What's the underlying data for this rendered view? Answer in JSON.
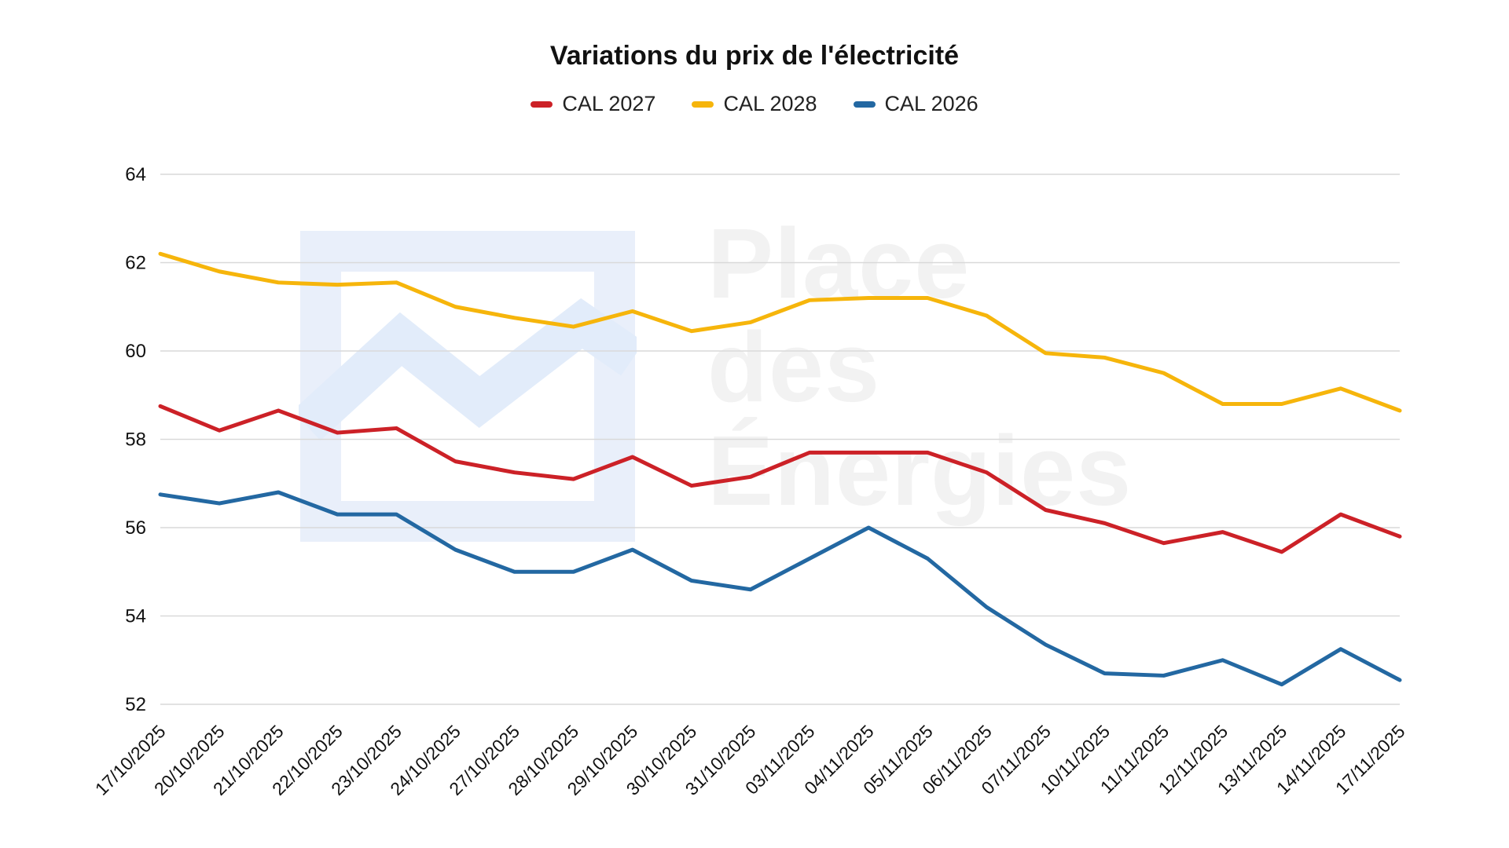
{
  "title": "Variations du prix de l'électricité",
  "watermark": {
    "lines": [
      "Place",
      "des",
      "Énergies"
    ],
    "text_color": "#f2f2f2",
    "logo_color": "#e9effa",
    "logo_zigzag_color": "#e2ecfa"
  },
  "colors": {
    "grid": "#d9d9d9",
    "tick_label": "#111111",
    "background": "#ffffff"
  },
  "chart_data": {
    "type": "line",
    "title": "Variations du prix de l'électricité",
    "xlabel": "",
    "ylabel": "",
    "ylim": [
      52,
      64
    ],
    "yticks": [
      52,
      54,
      56,
      58,
      60,
      62,
      64
    ],
    "grid": true,
    "legend_position": "top",
    "categories": [
      "17/10/2025",
      "20/10/2025",
      "21/10/2025",
      "22/10/2025",
      "23/10/2025",
      "24/10/2025",
      "27/10/2025",
      "28/10/2025",
      "29/10/2025",
      "30/10/2025",
      "31/10/2025",
      "03/11/2025",
      "04/11/2025",
      "05/11/2025",
      "06/11/2025",
      "07/11/2025",
      "10/11/2025",
      "11/11/2025",
      "12/11/2025",
      "13/11/2025",
      "14/11/2025",
      "17/11/2025"
    ],
    "series": [
      {
        "name": "CAL 2027",
        "color": "#cc2127",
        "values": [
          58.75,
          58.2,
          58.65,
          58.15,
          58.25,
          57.5,
          57.25,
          57.1,
          57.6,
          56.95,
          57.15,
          57.7,
          57.7,
          57.7,
          57.25,
          56.4,
          56.1,
          55.65,
          55.9,
          55.45,
          56.3,
          55.8
        ]
      },
      {
        "name": "CAL 2028",
        "color": "#f6b50b",
        "values": [
          62.2,
          61.8,
          61.55,
          61.5,
          61.55,
          61.0,
          60.75,
          60.55,
          60.9,
          60.45,
          60.65,
          61.15,
          61.2,
          61.2,
          60.8,
          59.95,
          59.85,
          59.5,
          58.8,
          58.8,
          59.15,
          58.65
        ]
      },
      {
        "name": "CAL 2026",
        "color": "#2368a2",
        "values": [
          56.75,
          56.55,
          56.8,
          56.3,
          56.3,
          55.5,
          55.0,
          55.0,
          55.5,
          54.8,
          54.6,
          55.3,
          56.0,
          55.3,
          54.2,
          53.35,
          52.7,
          52.65,
          53.0,
          52.45,
          53.25,
          52.55
        ]
      }
    ]
  }
}
